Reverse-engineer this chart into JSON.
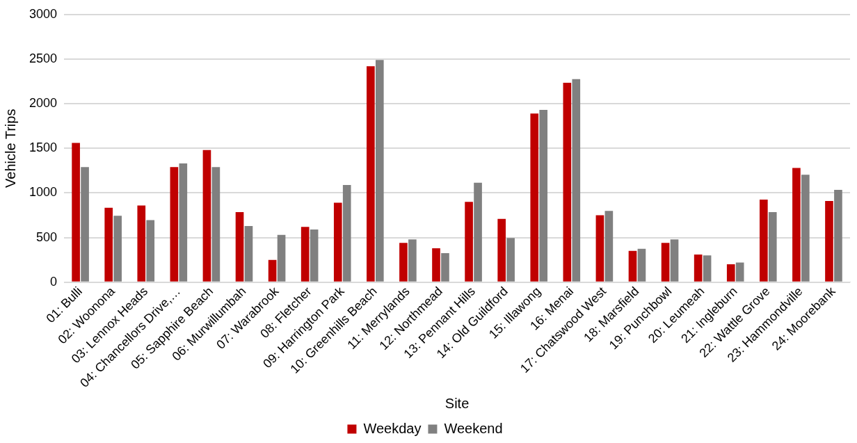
{
  "chart_data": {
    "type": "bar",
    "xlabel": "Site",
    "ylabel": "Vehicle Trips",
    "categories": [
      "01: Bulli",
      "02: Woonona",
      "03: Lennox Heads",
      "04: Chancellors Drive,…",
      "05: Sapphire Beach",
      "06: Murwillumbah",
      "07: Warabrook",
      "08: Fletcher",
      "09: Harrington Park",
      "10: Greenhills Beach",
      "11: Merrylands",
      "12: Northmead",
      "13: Pennant Hills",
      "14: Old Guildford",
      "15: Illawong",
      "16: Menai",
      "17: Chatswood West",
      "18: Marsfield",
      "19: Punchbowl",
      "20: Leumeah",
      "21: Ingleburn",
      "22: Wattle Grove",
      "23: Hammondville",
      "24: Moorebank"
    ],
    "series": [
      {
        "name": "Weekday",
        "color": "#c00000",
        "values": [
          1560,
          835,
          860,
          1290,
          1480,
          785,
          250,
          620,
          890,
          2420,
          440,
          380,
          900,
          710,
          1890,
          2235,
          750,
          350,
          440,
          310,
          200,
          925,
          1280,
          910
        ]
      },
      {
        "name": "Weekend",
        "color": "#808080",
        "values": [
          1290,
          745,
          695,
          1330,
          1290,
          630,
          530,
          590,
          1090,
          2490,
          480,
          325,
          1115,
          495,
          1930,
          2275,
          800,
          375,
          480,
          300,
          220,
          785,
          1205,
          1035
        ]
      }
    ],
    "ylim": [
      0,
      3000
    ],
    "yticks": [
      0,
      500,
      1000,
      1500,
      2000,
      2500,
      3000
    ],
    "grid": "y",
    "legend": "bottom"
  }
}
